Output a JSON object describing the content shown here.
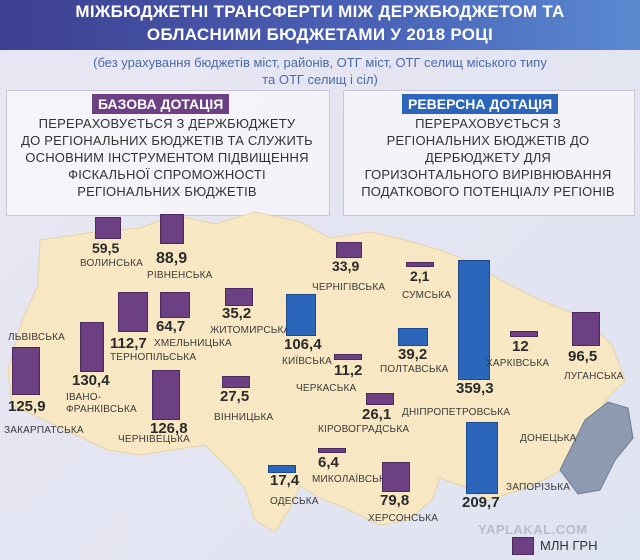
{
  "header": {
    "title_line1": "МІЖБЮДЖЕТНІ ТРАНСФЕРТИ МІЖ ДЕРЖБЮДЖЕТОМ ТА",
    "title_line2": "ОБЛАСНИМИ БЮДЖЕТАМИ У 2018 РОЦІ",
    "subtitle_line1": "(без урахування бюджетів міст, районів, ОТГ міст, ОТГ селищ міського типу",
    "subtitle_line2": "та ОТГ селищ і сіл)"
  },
  "base_panel": {
    "title": "БАЗОВА ДОТАЦІЯ",
    "lines": [
      "ПЕРЕРАХОВУЄТЬСЯ З ДЕРЖБЮДЖЕТУ",
      "ДО РЕГІОНАЛЬНИХ БЮДЖЕТІВ ТА СЛУЖИТЬ",
      "ОСНОВНИМ ІНСТРУМЕНТОМ ПІДВИЩЕННЯ",
      "ФІСКАЛЬНОЇ СПРОМОЖНОСТІ",
      "РЕГІОНАЛЬНИХ БЮДЖЕТІВ"
    ],
    "color": "#6d3f83"
  },
  "reverse_panel": {
    "title": "РЕВЕРСНА ДОТАЦІЯ",
    "lines": [
      "ПЕРЕРАХОВУЄТЬСЯ З",
      "РЕГІОНАЛЬНИХ БЮДЖЕТІВ ДО",
      "ДЕРБЮДЖЕТУ ДЛЯ",
      "ГОРИЗОНТАЛЬНОГО ВИРІВНЮВАННЯ",
      "ПОДАТКОВОГО ПОТЕНЦІАЛУ РЕГІОНІВ"
    ],
    "color": "#2c66bb"
  },
  "legend": {
    "unit": "МЛН ГРН"
  },
  "watermark": "YAPLAKAL.COM",
  "regions": [
    {
      "name": "ВОЛИНСЬКА",
      "value": "59,5",
      "type": "base"
    },
    {
      "name": "РІВНЕНСЬКА",
      "value": "88,9",
      "type": "base"
    },
    {
      "name": "ЧЕРНІГІВСЬКА",
      "value": "33,9",
      "type": "base"
    },
    {
      "name": "СУМСЬКА",
      "value": "2,1",
      "type": "base"
    },
    {
      "name": "ЛЬВІВСЬКА",
      "value": "125,9",
      "type": "base"
    },
    {
      "name": "ЗАКАРПАТСЬКА",
      "value": "",
      "type": "label"
    },
    {
      "name": "ТЕРНОПІЛЬСЬКА",
      "value": "112,7",
      "type": "base"
    },
    {
      "name": "ХМЕЛЬНИЦЬКА",
      "value": "64,7",
      "type": "base"
    },
    {
      "name": "ЖИТОМИРСЬКА",
      "value": "35,2",
      "type": "base"
    },
    {
      "name": "КИЇВСЬКА",
      "value": "106,4",
      "type": "rev"
    },
    {
      "name": "ПОЛТАВСЬКА",
      "value": "39,2",
      "type": "rev"
    },
    {
      "name": "ДНІПРОПЕТРОВСЬКА",
      "value": "359,3",
      "type": "rev"
    },
    {
      "name": "ХАРКІВСЬКА",
      "value": "12",
      "type": "base"
    },
    {
      "name": "ЛУГАНСЬКА",
      "value": "96,5",
      "type": "base"
    },
    {
      "name": "ІВАНО-ФРАНКІВСЬКА",
      "value": "130,4",
      "type": "base"
    },
    {
      "name": "ЧЕРКАСЬКА",
      "value": "11,2",
      "type": "base"
    },
    {
      "name": "ВІННИЦЬКА",
      "value": "27,5",
      "type": "base"
    },
    {
      "name": "КІРОВОГРАДСЬКА",
      "value": "26,1",
      "type": "base"
    },
    {
      "name": "ЧЕРНІВЕЦЬКА",
      "value": "126,8",
      "type": "base"
    },
    {
      "name": "ДОНЕЦЬКА",
      "value": "",
      "type": "label"
    },
    {
      "name": "ОДЕСЬКА",
      "value": "17,4",
      "type": "rev"
    },
    {
      "name": "МИКОЛАЇВСЬКА",
      "value": "6,4",
      "type": "base"
    },
    {
      "name": "ЗАПОРІЗЬКА",
      "value": "209,7",
      "type": "rev"
    },
    {
      "name": "ХЕРСОНСЬКА",
      "value": "79,8",
      "type": "base"
    }
  ]
}
